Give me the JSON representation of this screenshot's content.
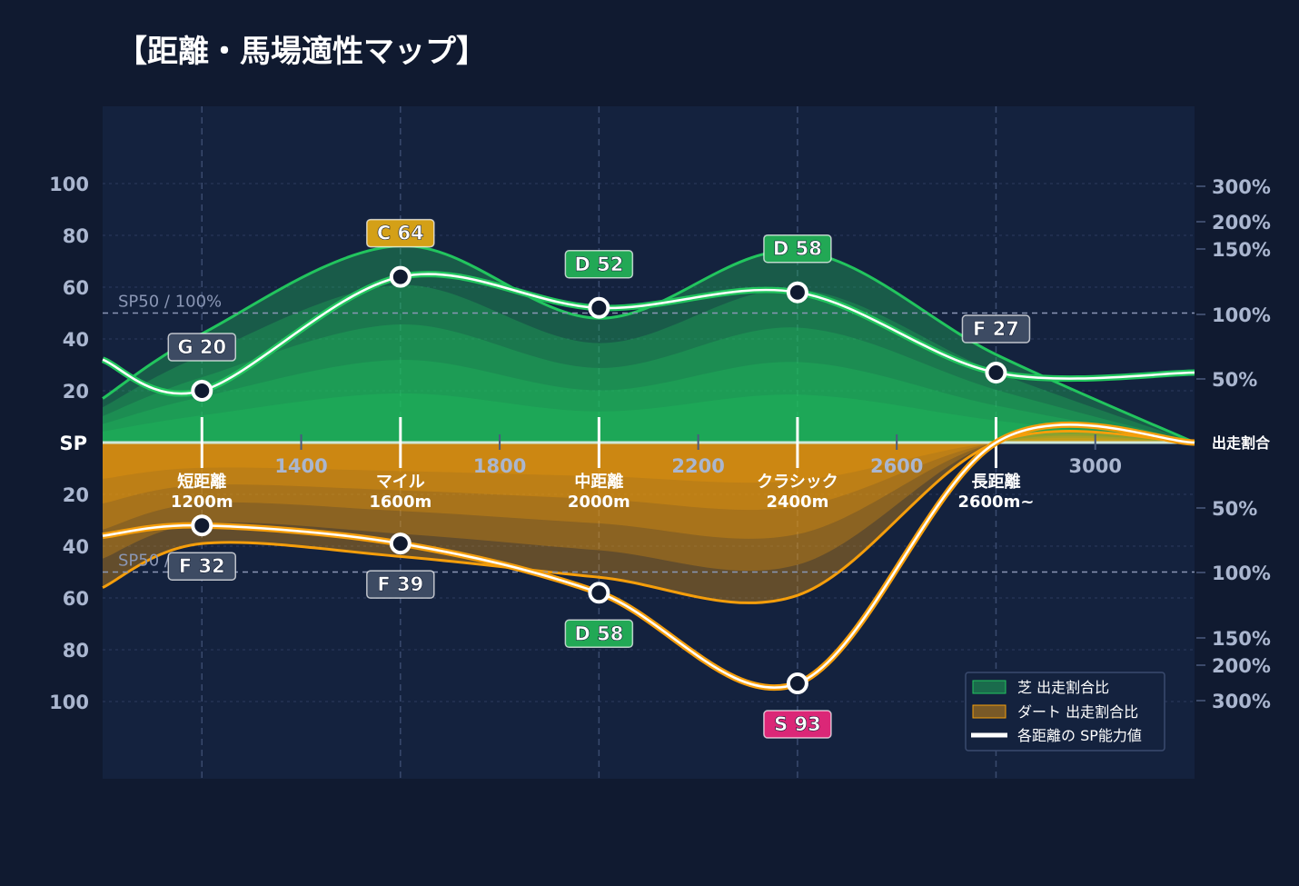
{
  "title": "【距離・馬場適性マップ】",
  "colors": {
    "background": "#101a30",
    "plot_background": "#14223e",
    "grid": "#2c3b5e",
    "turf": "#22c55e",
    "dirt": "#f59e0b",
    "sp_line": "#ffffff",
    "grade_colors": {
      "S": "#db2777",
      "C": "#d4a017",
      "D": "#22a855",
      "F": "#3d4b63",
      "G": "#3d4b63"
    }
  },
  "chart_data": {
    "type": "area",
    "title": "【距離・馬場適性マップ】",
    "x_range": [
      1000,
      3200
    ],
    "x_ticks": [
      "1400",
      "1800",
      "2200",
      "2600",
      "3000"
    ],
    "x_tick_values": [
      1400,
      1800,
      2200,
      2600,
      3000
    ],
    "left_axis": {
      "center_label": "SP",
      "turf_ticks": [
        "100",
        "80",
        "60",
        "40",
        "20"
      ],
      "dirt_ticks": [
        "20",
        "40",
        "60",
        "80",
        "100"
      ],
      "range": [
        0,
        130
      ]
    },
    "right_axis": {
      "center_label": "出走割合",
      "turf_ticks": [
        "300%",
        "200%",
        "150%",
        "100%",
        "50%"
      ],
      "dirt_ticks": [
        "50%",
        "100%",
        "150%",
        "200%",
        "300%"
      ]
    },
    "reference_lines": [
      {
        "label": "SP50 / 100%",
        "side": "turf",
        "sp": 50
      },
      {
        "label": "SP50 / 100%",
        "side": "dirt",
        "sp": 50
      }
    ],
    "categories": [
      {
        "label": "短距離",
        "distance": "1200m",
        "x": 1200
      },
      {
        "label": "マイル",
        "distance": "1600m",
        "x": 1600
      },
      {
        "label": "中距離",
        "distance": "2000m",
        "x": 2000
      },
      {
        "label": "クラシック",
        "distance": "2400m",
        "x": 2400
      },
      {
        "label": "長距離",
        "distance": "2600m~",
        "x": 2800
      }
    ],
    "series": [
      {
        "name": "芝 出走割合比",
        "side": "turf",
        "x": [
          1000,
          1200,
          1600,
          2000,
          2400,
          2800,
          3200
        ],
        "values": [
          17,
          42,
          76,
          48,
          74,
          34,
          0
        ]
      },
      {
        "name": "ダート 出走割合比",
        "side": "dirt",
        "x": [
          1000,
          1200,
          1600,
          2000,
          2400,
          2800,
          3200
        ],
        "values": [
          56,
          39,
          44,
          52,
          59,
          0,
          0
        ]
      },
      {
        "name": "各距離の SP能力値",
        "side": "both",
        "turf_points": [
          {
            "x": 1200,
            "sp": 20,
            "grade": "G 20"
          },
          {
            "x": 1600,
            "sp": 64,
            "grade": "C 64"
          },
          {
            "x": 2000,
            "sp": 52,
            "grade": "D 52"
          },
          {
            "x": 2400,
            "sp": 58,
            "grade": "D 58"
          },
          {
            "x": 2800,
            "sp": 27,
            "grade": "F 27"
          }
        ],
        "dirt_points": [
          {
            "x": 1200,
            "sp": 32,
            "grade": "F 32"
          },
          {
            "x": 1600,
            "sp": 39,
            "grade": "F 39"
          },
          {
            "x": 2000,
            "sp": 58,
            "grade": "D 58"
          },
          {
            "x": 2400,
            "sp": 93,
            "grade": "S 93"
          },
          {
            "x": 2800,
            "sp": 0,
            "grade": ""
          }
        ]
      }
    ],
    "legend": {
      "placement": "bottom-right",
      "entries": [
        "芝 出走割合比",
        "ダート 出走割合比",
        "各距離の SP能力値"
      ]
    },
    "grid": true
  }
}
